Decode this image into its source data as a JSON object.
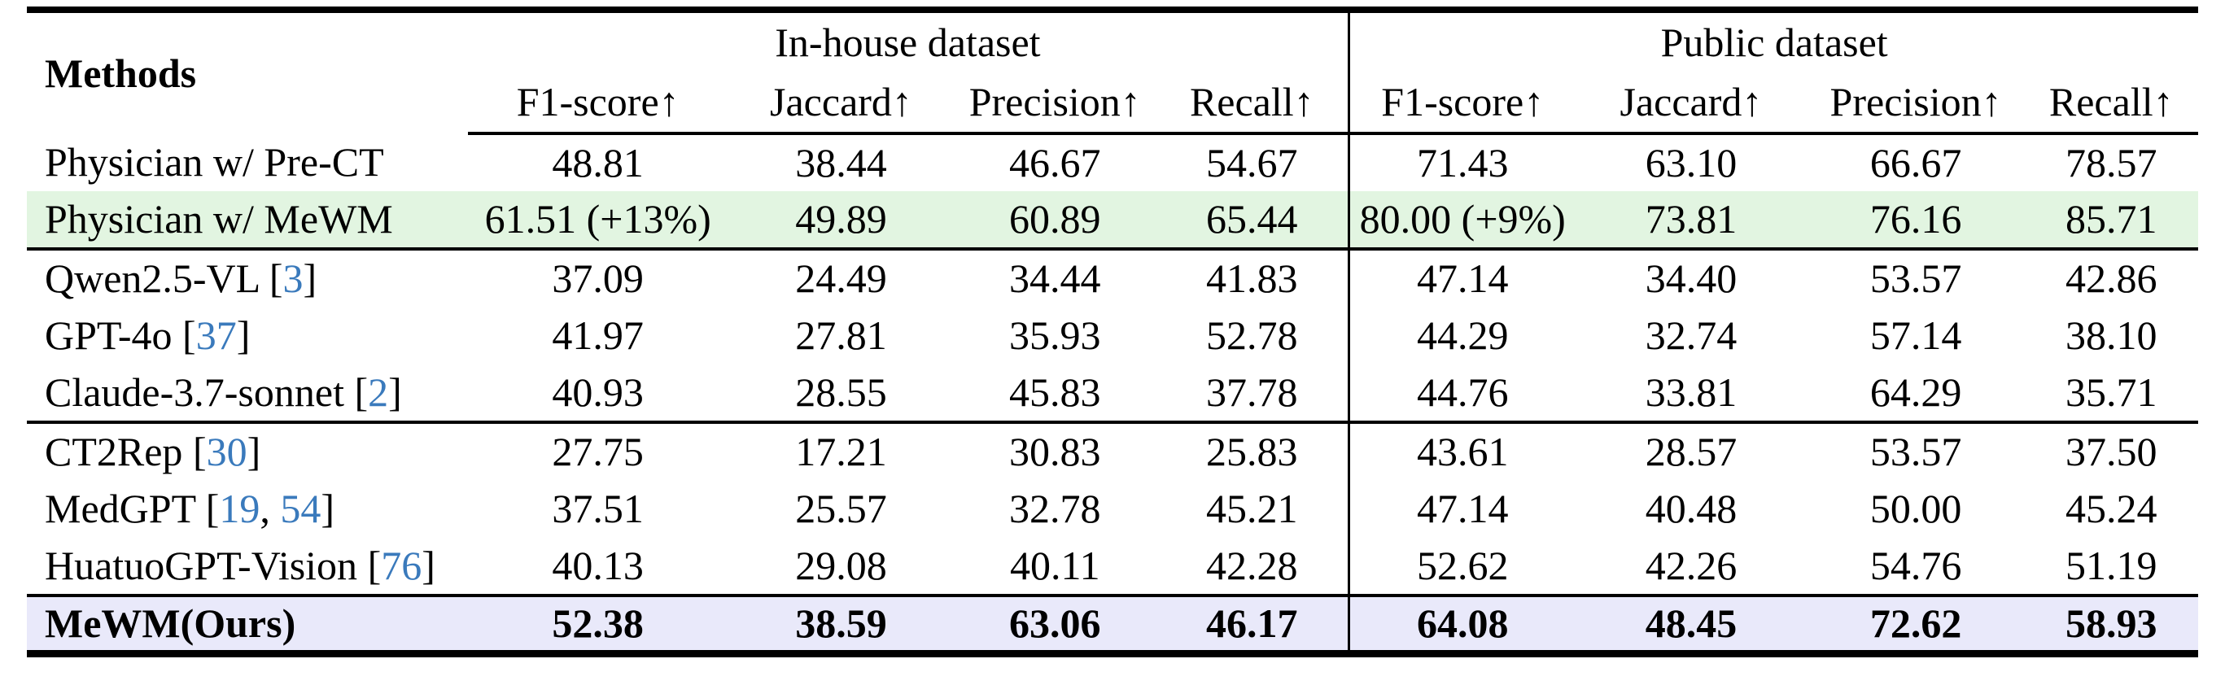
{
  "table": {
    "methods_header": "Methods",
    "groups": [
      {
        "label": "In-house dataset"
      },
      {
        "label": "Public dataset"
      }
    ],
    "metric_headers": [
      "F1-score↑",
      "Jaccard↑",
      "Precision↑",
      "Recall↑",
      "F1-score↑",
      "Jaccard↑",
      "Precision↑",
      "Recall↑"
    ],
    "rows": [
      {
        "method": "Physician w/ Pre-CT",
        "cites": [],
        "values": [
          "48.81",
          "38.44",
          "46.67",
          "54.67",
          "71.43",
          "63.10",
          "66.67",
          "78.57"
        ],
        "highlight": "",
        "bold": false,
        "rule_after": false
      },
      {
        "method": "Physician w/ MeWM",
        "cites": [],
        "values": [
          "61.51 (+13%)",
          "49.89",
          "60.89",
          "65.44",
          "80.00 (+9%)",
          "73.81",
          "76.16",
          "85.71"
        ],
        "highlight": "green",
        "bold": false,
        "rule_after": true
      },
      {
        "method": "Qwen2.5-VL",
        "cites": [
          "3"
        ],
        "values": [
          "37.09",
          "24.49",
          "34.44",
          "41.83",
          "47.14",
          "34.40",
          "53.57",
          "42.86"
        ],
        "highlight": "",
        "bold": false,
        "rule_after": false
      },
      {
        "method": "GPT-4o",
        "cites": [
          "37"
        ],
        "values": [
          "41.97",
          "27.81",
          "35.93",
          "52.78",
          "44.29",
          "32.74",
          "57.14",
          "38.10"
        ],
        "highlight": "",
        "bold": false,
        "rule_after": false
      },
      {
        "method": "Claude-3.7-sonnet",
        "cites": [
          "2"
        ],
        "values": [
          "40.93",
          "28.55",
          "45.83",
          "37.78",
          "44.76",
          "33.81",
          "64.29",
          "35.71"
        ],
        "highlight": "",
        "bold": false,
        "rule_after": true
      },
      {
        "method": "CT2Rep",
        "cites": [
          "30"
        ],
        "values": [
          "27.75",
          "17.21",
          "30.83",
          "25.83",
          "43.61",
          "28.57",
          "53.57",
          "37.50"
        ],
        "highlight": "",
        "bold": false,
        "rule_after": false
      },
      {
        "method": "MedGPT",
        "cites": [
          "19",
          "54"
        ],
        "values": [
          "37.51",
          "25.57",
          "32.78",
          "45.21",
          "47.14",
          "40.48",
          "50.00",
          "45.24"
        ],
        "highlight": "",
        "bold": false,
        "rule_after": false
      },
      {
        "method": "HuatuoGPT-Vision",
        "cites": [
          "76"
        ],
        "values": [
          "40.13",
          "29.08",
          "40.11",
          "42.28",
          "52.62",
          "42.26",
          "54.76",
          "51.19"
        ],
        "highlight": "",
        "bold": false,
        "rule_after": true
      },
      {
        "method": "MeWM(Ours)",
        "cites": [],
        "values": [
          "52.38",
          "38.59",
          "63.06",
          "46.17",
          "64.08",
          "48.45",
          "72.62",
          "58.93"
        ],
        "highlight": "lavender",
        "bold": true,
        "rule_after": false
      }
    ],
    "colors": {
      "rule": "#000000",
      "highlight_green": "#e2f5e1",
      "highlight_lavender": "#e9e9fa",
      "citation_blue": "#3a7abc",
      "text": "#000000"
    }
  }
}
